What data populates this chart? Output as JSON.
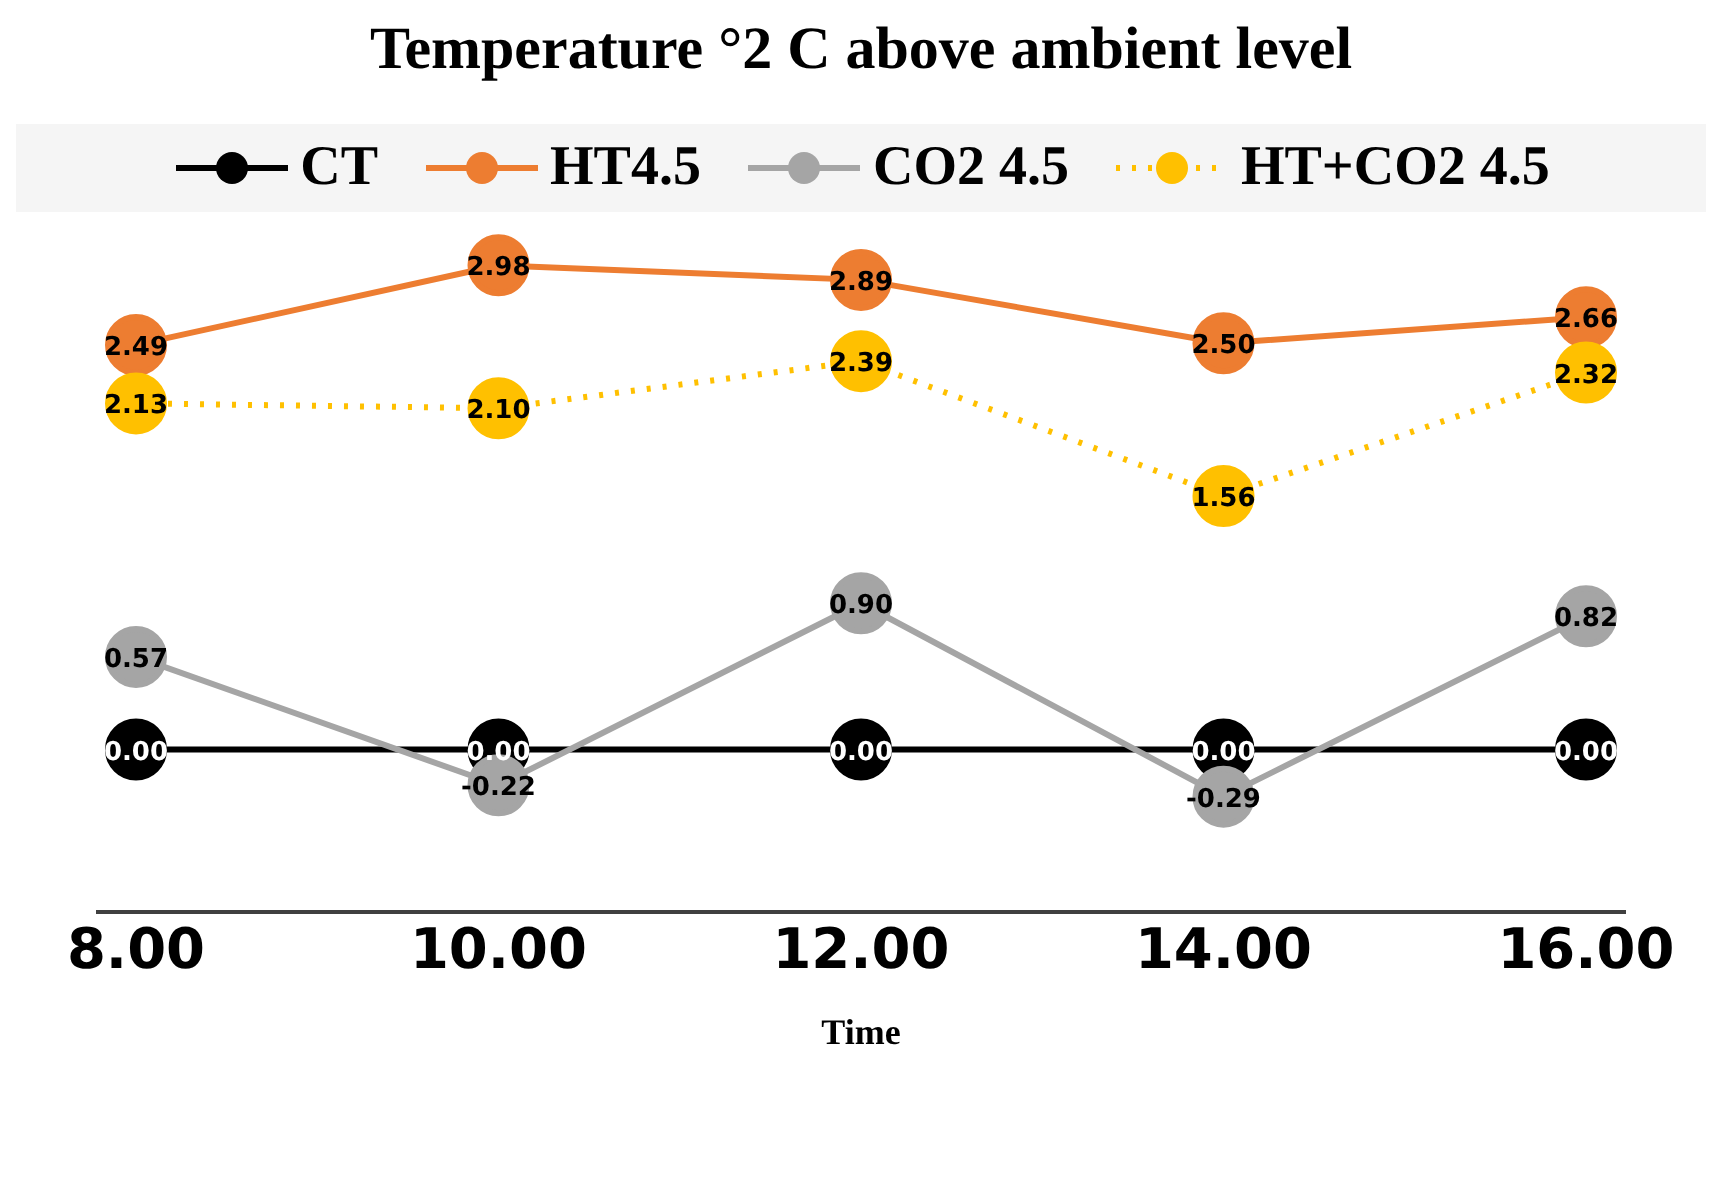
{
  "chart_data": {
    "type": "line",
    "title": "Temperature °2 C above ambient level",
    "xlabel": "Time",
    "categories": [
      "8.00",
      "10.00",
      "12.00",
      "14.00",
      "16.00"
    ],
    "series": [
      {
        "name": "CT",
        "color": "#000000",
        "values": [
          0,
          0,
          0,
          0,
          0
        ],
        "value_labels": [
          "0.00",
          "0.00",
          "0.00",
          "0.00",
          "0.00"
        ]
      },
      {
        "name": "HT4.5",
        "color": "#ed7d31",
        "values": [
          2.49,
          2.98,
          2.89,
          2.5,
          2.66
        ],
        "value_labels": [
          "2.49",
          "2.98",
          "2.89",
          "2.50",
          "2.66"
        ]
      },
      {
        "name": "CO2 4.5",
        "color": "#a5a5a5",
        "values": [
          0.57,
          -0.22,
          0.9,
          -0.29,
          0.82
        ],
        "value_labels": [
          "0.57",
          "-0.22",
          "0.90",
          "-0.29",
          "0.82"
        ]
      },
      {
        "name": "HT+CO2 4.5",
        "color": "#ffc000",
        "line_style": "dotted",
        "values": [
          2.13,
          2.1,
          2.39,
          1.56,
          2.32
        ],
        "value_labels": [
          "2.13",
          "2.10",
          "2.39",
          "1.56",
          "2.32"
        ]
      }
    ],
    "legend": "top",
    "marker": "circle",
    "grid": false
  }
}
